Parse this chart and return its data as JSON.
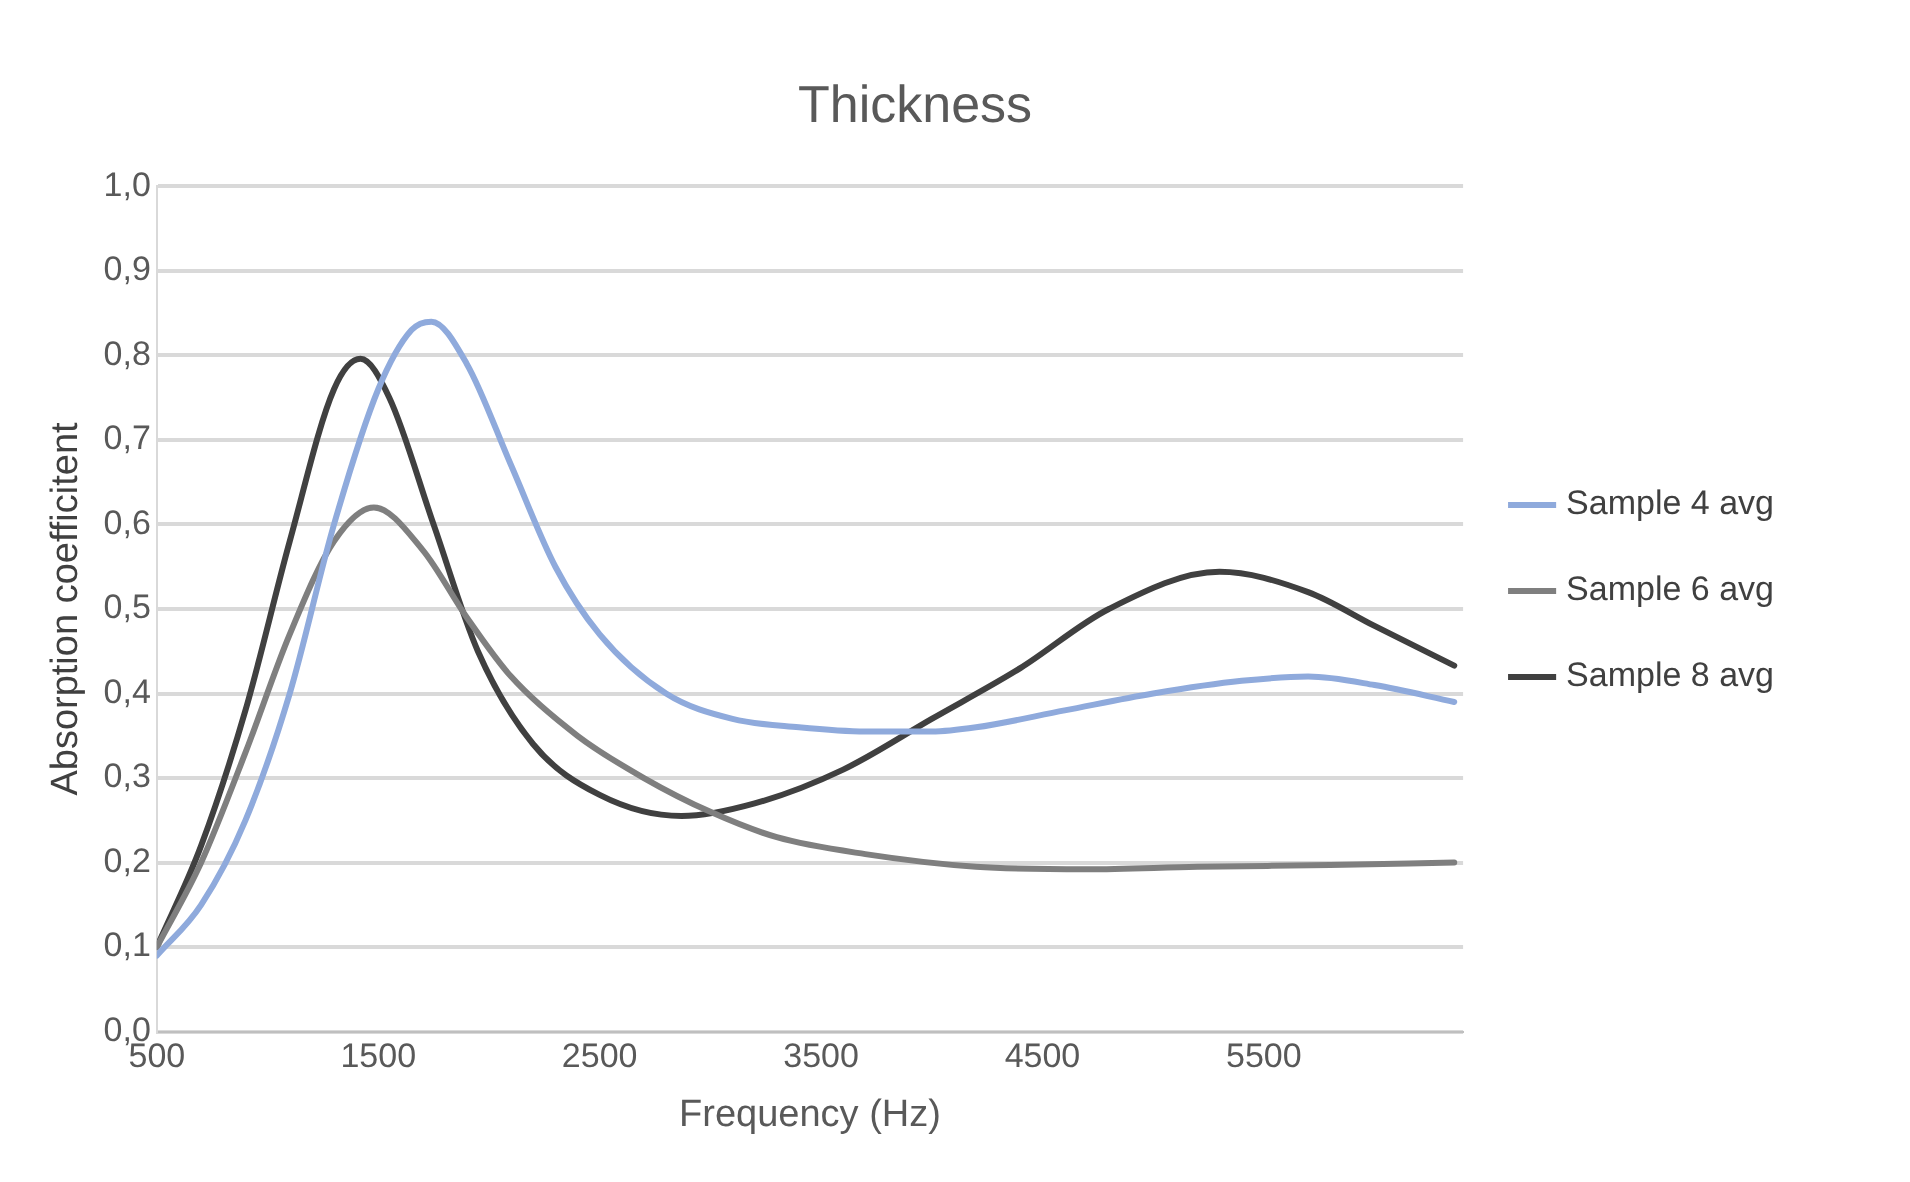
{
  "chart_data": {
    "type": "line",
    "title": "Thickness",
    "xlabel": "Frequency (Hz)",
    "ylabel": "Absorption coefficitent",
    "xlim": [
      500,
      6400
    ],
    "xticks": [
      500,
      1500,
      2500,
      3500,
      4500,
      5500
    ],
    "ylim": [
      0,
      1
    ],
    "yticks": [
      {
        "value": 0,
        "label": "0,0"
      },
      {
        "value": 0.1,
        "label": "0,1"
      },
      {
        "value": 0.2,
        "label": "0,2"
      },
      {
        "value": 0.3,
        "label": "0,3"
      },
      {
        "value": 0.4,
        "label": "0,4"
      },
      {
        "value": 0.5,
        "label": "0,5"
      },
      {
        "value": 0.6,
        "label": "0,6"
      },
      {
        "value": 0.7,
        "label": "0,7"
      },
      {
        "value": 0.8,
        "label": "0,8"
      },
      {
        "value": 0.9,
        "label": "0,9"
      },
      {
        "value": 1,
        "label": "1,0"
      }
    ],
    "grid": "y",
    "legend": "right",
    "marker": "none",
    "line_style": "solid",
    "series": [
      {
        "name": "Sample 4 avg",
        "color": "#8faadc",
        "x": [
          500,
          700,
          900,
          1100,
          1300,
          1500,
          1650,
          1740,
          1900,
          2100,
          2300,
          2500,
          2800,
          3100,
          3400,
          3700,
          4000,
          4200,
          4600,
          5000,
          5400,
          5700,
          6000,
          6360
        ],
        "values": [
          0.09,
          0.15,
          0.25,
          0.4,
          0.6,
          0.76,
          0.83,
          0.84,
          0.79,
          0.67,
          0.55,
          0.47,
          0.4,
          0.37,
          0.36,
          0.355,
          0.355,
          0.36,
          0.38,
          0.4,
          0.415,
          0.42,
          0.41,
          0.39
        ]
      },
      {
        "name": "Sample 6 avg",
        "color": "#7f7f7f",
        "x": [
          500,
          700,
          900,
          1100,
          1300,
          1480,
          1700,
          1900,
          2100,
          2400,
          2700,
          3000,
          3300,
          3700,
          4200,
          4700,
          5200,
          5800,
          6360
        ],
        "values": [
          0.1,
          0.2,
          0.33,
          0.47,
          0.58,
          0.62,
          0.57,
          0.49,
          0.42,
          0.35,
          0.3,
          0.26,
          0.23,
          0.21,
          0.195,
          0.192,
          0.195,
          0.197,
          0.2
        ]
      },
      {
        "name": "Sample 8 avg",
        "color": "#404040",
        "x": [
          500,
          700,
          900,
          1100,
          1300,
          1420,
          1550,
          1750,
          1950,
          2200,
          2500,
          2870,
          3200,
          3600,
          4000,
          4400,
          4800,
          5300,
          5700,
          6000,
          6360
        ],
        "values": [
          0.1,
          0.22,
          0.38,
          0.58,
          0.76,
          0.796,
          0.75,
          0.6,
          0.45,
          0.34,
          0.28,
          0.255,
          0.27,
          0.31,
          0.37,
          0.43,
          0.5,
          0.544,
          0.52,
          0.48,
          0.433
        ]
      }
    ]
  }
}
